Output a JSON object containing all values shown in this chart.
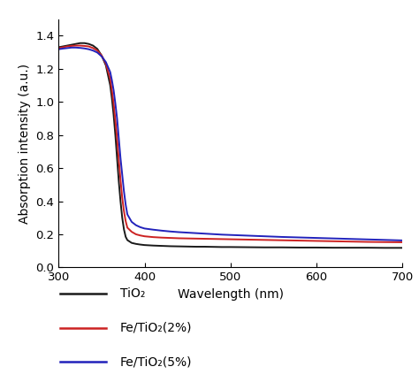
{
  "xlabel": "Wavelength (nm)",
  "ylabel": "Absorption intensity (a.u.)",
  "xlim": [
    300,
    700
  ],
  "ylim": [
    0,
    1.5
  ],
  "yticks": [
    0,
    0.2,
    0.4,
    0.6,
    0.8,
    1.0,
    1.2,
    1.4
  ],
  "xticks": [
    300,
    400,
    500,
    600,
    700
  ],
  "line_colors": [
    "#1a1a1a",
    "#cc2222",
    "#2222bb"
  ],
  "line_labels": [
    "TiO₂",
    "Fe/TiO₂(2%)",
    "Fe/TiO₂(5%)"
  ],
  "background_color": "#ffffff",
  "series": {
    "TiO2": {
      "wavelengths": [
        300,
        305,
        310,
        315,
        320,
        325,
        330,
        335,
        340,
        345,
        350,
        355,
        360,
        362,
        364,
        366,
        368,
        370,
        372,
        374,
        376,
        378,
        380,
        385,
        390,
        395,
        400,
        410,
        420,
        430,
        440,
        450,
        460,
        470,
        480,
        490,
        500,
        520,
        540,
        560,
        580,
        600,
        620,
        640,
        660,
        680,
        700
      ],
      "absorbance": [
        1.33,
        1.335,
        1.34,
        1.345,
        1.35,
        1.355,
        1.355,
        1.35,
        1.34,
        1.32,
        1.28,
        1.22,
        1.1,
        1.02,
        0.92,
        0.8,
        0.66,
        0.52,
        0.4,
        0.3,
        0.23,
        0.185,
        0.165,
        0.148,
        0.142,
        0.138,
        0.135,
        0.132,
        0.13,
        0.128,
        0.127,
        0.126,
        0.125,
        0.125,
        0.124,
        0.123,
        0.123,
        0.122,
        0.121,
        0.121,
        0.12,
        0.12,
        0.119,
        0.119,
        0.119,
        0.118,
        0.118
      ]
    },
    "Fe2": {
      "wavelengths": [
        300,
        305,
        310,
        315,
        320,
        325,
        330,
        335,
        340,
        345,
        350,
        355,
        360,
        362,
        364,
        366,
        368,
        370,
        372,
        374,
        376,
        378,
        380,
        385,
        390,
        395,
        400,
        410,
        420,
        430,
        440,
        450,
        460,
        470,
        480,
        490,
        500,
        520,
        540,
        560,
        580,
        600,
        620,
        640,
        660,
        680,
        700
      ],
      "absorbance": [
        1.325,
        1.33,
        1.335,
        1.338,
        1.34,
        1.34,
        1.338,
        1.335,
        1.325,
        1.31,
        1.28,
        1.23,
        1.14,
        1.07,
        0.99,
        0.89,
        0.78,
        0.65,
        0.53,
        0.42,
        0.34,
        0.28,
        0.24,
        0.215,
        0.2,
        0.193,
        0.188,
        0.183,
        0.18,
        0.178,
        0.176,
        0.175,
        0.174,
        0.173,
        0.172,
        0.171,
        0.17,
        0.168,
        0.166,
        0.164,
        0.162,
        0.16,
        0.158,
        0.156,
        0.154,
        0.153,
        0.152
      ]
    },
    "Fe5": {
      "wavelengths": [
        300,
        305,
        310,
        315,
        320,
        325,
        330,
        335,
        340,
        345,
        350,
        355,
        360,
        362,
        364,
        366,
        368,
        370,
        372,
        374,
        376,
        378,
        380,
        385,
        390,
        395,
        400,
        410,
        420,
        430,
        440,
        450,
        460,
        470,
        480,
        490,
        500,
        520,
        540,
        560,
        580,
        600,
        620,
        640,
        660,
        680,
        700
      ],
      "absorbance": [
        1.318,
        1.322,
        1.325,
        1.328,
        1.328,
        1.326,
        1.323,
        1.318,
        1.31,
        1.298,
        1.275,
        1.24,
        1.18,
        1.13,
        1.07,
        0.99,
        0.9,
        0.78,
        0.66,
        0.56,
        0.46,
        0.38,
        0.32,
        0.275,
        0.255,
        0.243,
        0.235,
        0.228,
        0.222,
        0.217,
        0.213,
        0.21,
        0.207,
        0.204,
        0.201,
        0.198,
        0.196,
        0.192,
        0.188,
        0.184,
        0.181,
        0.178,
        0.175,
        0.172,
        0.169,
        0.166,
        0.163
      ]
    }
  }
}
